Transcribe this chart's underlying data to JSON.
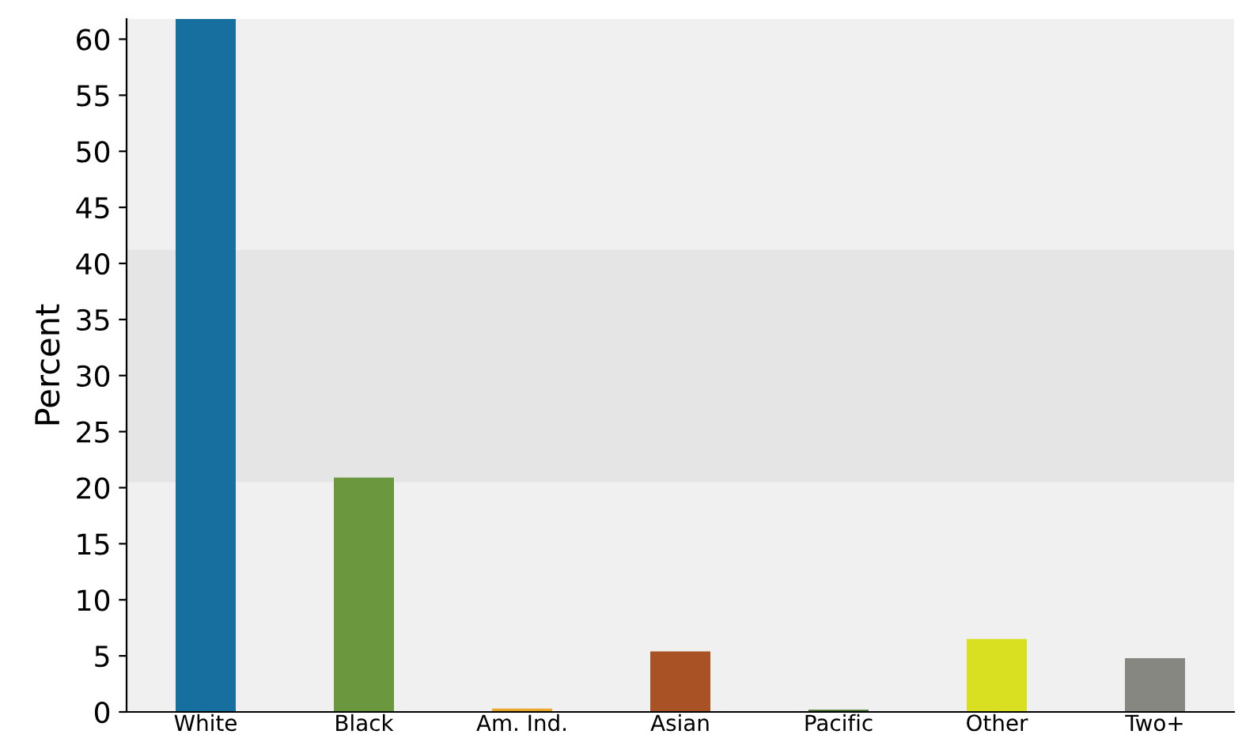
{
  "chart_data": {
    "type": "bar",
    "ylabel": "Percent",
    "categories": [
      "White",
      "Black",
      "Am. Ind.",
      "Asian",
      "Pacific",
      "Other",
      "Two+"
    ],
    "values": [
      61.8,
      20.9,
      0.3,
      5.4,
      0.2,
      6.5,
      4.8
    ],
    "colors": [
      "#176f9f",
      "#6b983f",
      "#e8a72a",
      "#a85226",
      "#3c6e2a",
      "#d9e021",
      "#878782"
    ],
    "ylim": [
      0,
      61.8
    ],
    "yticks": [
      0,
      5,
      10,
      15,
      20,
      25,
      30,
      35,
      40,
      45,
      50,
      55,
      60
    ],
    "bands": [
      {
        "axis": "y",
        "from": 20.5,
        "to": 41.2,
        "color": "#e5e5e5"
      }
    ],
    "grid": false
  }
}
